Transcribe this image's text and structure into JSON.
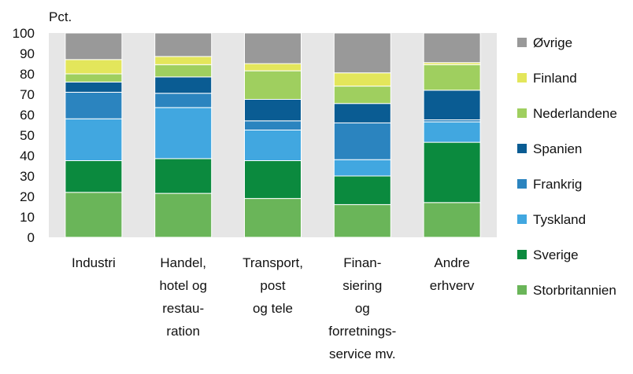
{
  "chart_data": {
    "type": "bar",
    "stacked": true,
    "ylabel": "Pct.",
    "ylim": [
      0,
      100
    ],
    "yticks": [
      0,
      10,
      20,
      30,
      40,
      50,
      60,
      70,
      80,
      90,
      100
    ],
    "grid": false,
    "legend_position": "right",
    "plot_background": "#e6e6e6",
    "categories": [
      [
        "Industri"
      ],
      [
        "Handel,",
        "hotel og",
        "restau-",
        "ration"
      ],
      [
        "Transport,",
        "post",
        "og tele"
      ],
      [
        "Finan-",
        "siering",
        "og",
        "forretnings-",
        "service mv."
      ],
      [
        "Andre",
        "erhverv"
      ]
    ],
    "series": [
      {
        "name": "Storbritannien",
        "color": "#6ab559",
        "values": [
          22,
          21.5,
          19,
          16,
          17
        ]
      },
      {
        "name": "Sverige",
        "color": "#0b8a3e",
        "values": [
          15.5,
          17,
          18.5,
          14,
          29.5
        ]
      },
      {
        "name": "Tyskland",
        "color": "#41a7e0",
        "values": [
          20.5,
          25,
          15,
          8,
          10
        ]
      },
      {
        "name": "Frankrig",
        "color": "#2b84bf",
        "values": [
          13,
          7,
          4.5,
          18,
          1
        ]
      },
      {
        "name": "Spanien",
        "color": "#0a5c93",
        "values": [
          5,
          8,
          10.5,
          9.5,
          14.5
        ]
      },
      {
        "name": "Nederlandene",
        "color": "#9fcf5f",
        "values": [
          4,
          6,
          14,
          8.5,
          12.5
        ]
      },
      {
        "name": "Finland",
        "color": "#e3e65b",
        "values": [
          7,
          4,
          3.5,
          6.5,
          1
        ]
      },
      {
        "name": "Øvrige",
        "color": "#999999",
        "values": [
          13,
          11.5,
          15,
          19.5,
          14.5
        ]
      }
    ]
  }
}
